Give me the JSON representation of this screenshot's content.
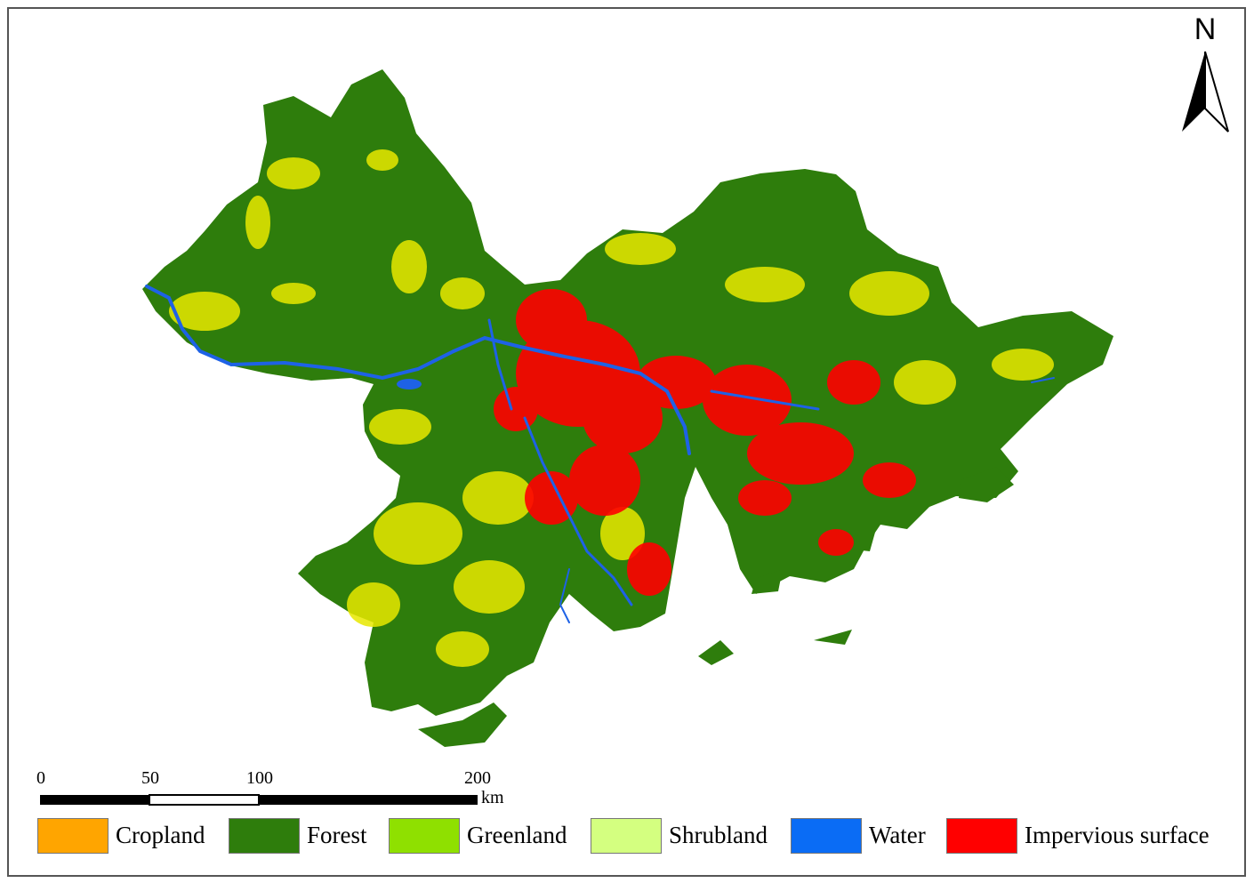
{
  "north_arrow": {
    "label": "N"
  },
  "scale_bar": {
    "labels": [
      "0",
      "50",
      "100",
      "200"
    ],
    "unit": "km"
  },
  "legend": {
    "items": [
      {
        "label": "Cropland",
        "color": "#FFA500"
      },
      {
        "label": "Forest",
        "color": "#2E7D0C"
      },
      {
        "label": "Greenland",
        "color": "#8FE000"
      },
      {
        "label": "Shrubland",
        "color": "#D4FF80"
      },
      {
        "label": "Water",
        "color": "#0A6CF5"
      },
      {
        "label": "Impervious surface",
        "color": "#FF0000"
      }
    ]
  },
  "map_colors": {
    "forest": "#2E7D0C",
    "yellow_patches": "#E8E800",
    "impervious": "#FF0000",
    "water": "#1E62E6"
  }
}
